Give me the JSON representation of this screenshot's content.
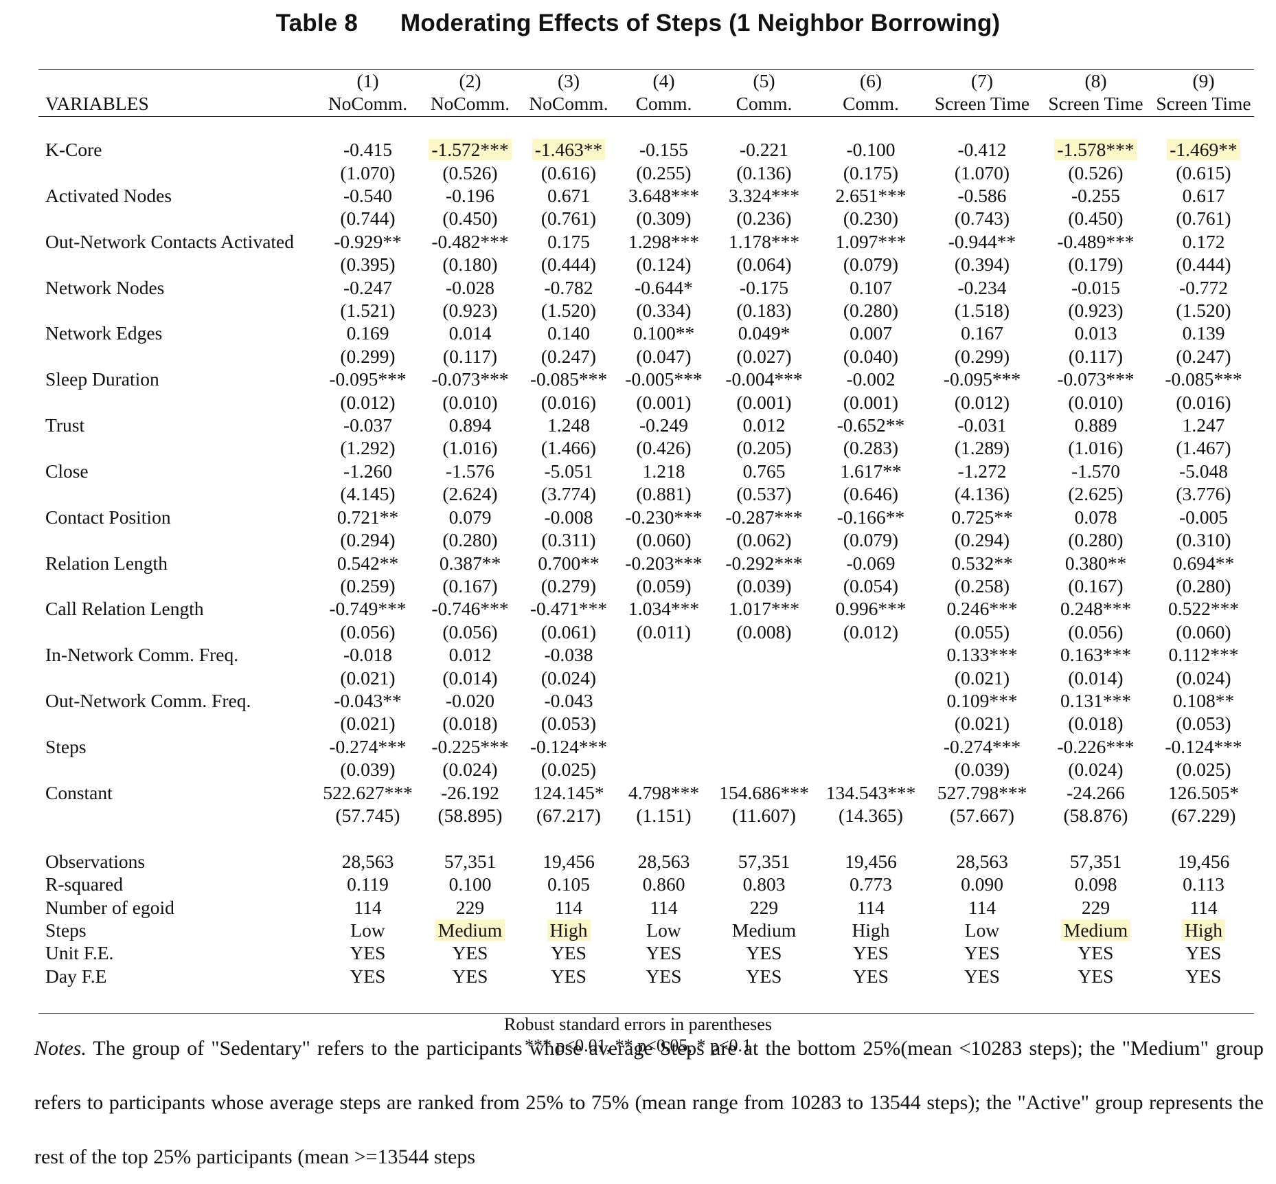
{
  "title": {
    "number": "Table 8",
    "text": "Moderating Effects of Steps (1 Neighbor Borrowing)"
  },
  "header": {
    "variables_label": "VARIABLES",
    "col_nums": [
      "(1)",
      "(2)",
      "(3)",
      "(4)",
      "(5)",
      "(6)",
      "(7)",
      "(8)",
      "(9)"
    ],
    "col_names": [
      "NoComm.",
      "NoComm.",
      "NoComm.",
      "Comm.",
      "Comm.",
      "Comm.",
      "Screen Time",
      "Screen Time",
      "Screen Time"
    ]
  },
  "rows": [
    {
      "label": "K-Core",
      "coef": [
        "-0.415",
        "-1.572***",
        "-1.463**",
        "-0.155",
        "-0.221",
        "-0.100",
        "-0.412",
        "-1.578***",
        "-1.469**"
      ],
      "se": [
        "(1.070)",
        "(0.526)",
        "(0.616)",
        "(0.255)",
        "(0.136)",
        "(0.175)",
        "(1.070)",
        "(0.526)",
        "(0.615)"
      ],
      "highlight": [
        1,
        2,
        7,
        8
      ]
    },
    {
      "label": "Activated Nodes",
      "coef": [
        "-0.540",
        "-0.196",
        "0.671",
        "3.648***",
        "3.324***",
        "2.651***",
        "-0.586",
        "-0.255",
        "0.617"
      ],
      "se": [
        "(0.744)",
        "(0.450)",
        "(0.761)",
        "(0.309)",
        "(0.236)",
        "(0.230)",
        "(0.743)",
        "(0.450)",
        "(0.761)"
      ]
    },
    {
      "label": "Out-Network Contacts Activated",
      "coef": [
        "-0.929**",
        "-0.482***",
        "0.175",
        "1.298***",
        "1.178***",
        "1.097***",
        "-0.944**",
        "-0.489***",
        "0.172"
      ],
      "se": [
        "(0.395)",
        "(0.180)",
        "(0.444)",
        "(0.124)",
        "(0.064)",
        "(0.079)",
        "(0.394)",
        "(0.179)",
        "(0.444)"
      ]
    },
    {
      "label": "Network Nodes",
      "coef": [
        "-0.247",
        "-0.028",
        "-0.782",
        "-0.644*",
        "-0.175",
        "0.107",
        "-0.234",
        "-0.015",
        "-0.772"
      ],
      "se": [
        "(1.521)",
        "(0.923)",
        "(1.520)",
        "(0.334)",
        "(0.183)",
        "(0.280)",
        "(1.518)",
        "(0.923)",
        "(1.520)"
      ]
    },
    {
      "label": "Network Edges",
      "coef": [
        "0.169",
        "0.014",
        "0.140",
        "0.100**",
        "0.049*",
        "0.007",
        "0.167",
        "0.013",
        "0.139"
      ],
      "se": [
        "(0.299)",
        "(0.117)",
        "(0.247)",
        "(0.047)",
        "(0.027)",
        "(0.040)",
        "(0.299)",
        "(0.117)",
        "(0.247)"
      ]
    },
    {
      "label": "Sleep Duration",
      "coef": [
        "-0.095***",
        "-0.073***",
        "-0.085***",
        "-0.005***",
        "-0.004***",
        "-0.002",
        "-0.095***",
        "-0.073***",
        "-0.085***"
      ],
      "se": [
        "(0.012)",
        "(0.010)",
        "(0.016)",
        "(0.001)",
        "(0.001)",
        "(0.001)",
        "(0.012)",
        "(0.010)",
        "(0.016)"
      ]
    },
    {
      "label": "Trust",
      "coef": [
        "-0.037",
        "0.894",
        "1.248",
        "-0.249",
        "0.012",
        "-0.652**",
        "-0.031",
        "0.889",
        "1.247"
      ],
      "se": [
        "(1.292)",
        "(1.016)",
        "(1.466)",
        "(0.426)",
        "(0.205)",
        "(0.283)",
        "(1.289)",
        "(1.016)",
        "(1.467)"
      ]
    },
    {
      "label": "Close",
      "coef": [
        "-1.260",
        "-1.576",
        "-5.051",
        "1.218",
        "0.765",
        "1.617**",
        "-1.272",
        "-1.570",
        "-5.048"
      ],
      "se": [
        "(4.145)",
        "(2.624)",
        "(3.774)",
        "(0.881)",
        "(0.537)",
        "(0.646)",
        "(4.136)",
        "(2.625)",
        "(3.776)"
      ]
    },
    {
      "label": "Contact Position",
      "coef": [
        "0.721**",
        "0.079",
        "-0.008",
        "-0.230***",
        "-0.287***",
        "-0.166**",
        "0.725**",
        "0.078",
        "-0.005"
      ],
      "se": [
        "(0.294)",
        "(0.280)",
        "(0.311)",
        "(0.060)",
        "(0.062)",
        "(0.079)",
        "(0.294)",
        "(0.280)",
        "(0.310)"
      ]
    },
    {
      "label": "Relation Length",
      "coef": [
        "0.542**",
        "0.387**",
        "0.700**",
        "-0.203***",
        "-0.292***",
        "-0.069",
        "0.532**",
        "0.380**",
        "0.694**"
      ],
      "se": [
        "(0.259)",
        "(0.167)",
        "(0.279)",
        "(0.059)",
        "(0.039)",
        "(0.054)",
        "(0.258)",
        "(0.167)",
        "(0.280)"
      ]
    },
    {
      "label": "Call Relation Length",
      "coef": [
        "-0.749***",
        "-0.746***",
        "-0.471***",
        "1.034***",
        "1.017***",
        "0.996***",
        "0.246***",
        "0.248***",
        "0.522***"
      ],
      "se": [
        "(0.056)",
        "(0.056)",
        "(0.061)",
        "(0.011)",
        "(0.008)",
        "(0.012)",
        "(0.055)",
        "(0.056)",
        "(0.060)"
      ]
    },
    {
      "label": "In-Network Comm. Freq.",
      "coef": [
        "-0.018",
        "0.012",
        "-0.038",
        "",
        "",
        "",
        "0.133***",
        "0.163***",
        "0.112***"
      ],
      "se": [
        "(0.021)",
        "(0.014)",
        "(0.024)",
        "",
        "",
        "",
        "(0.021)",
        "(0.014)",
        "(0.024)"
      ]
    },
    {
      "label": "Out-Network Comm. Freq.",
      "coef": [
        "-0.043**",
        "-0.020",
        "-0.043",
        "",
        "",
        "",
        "0.109***",
        "0.131***",
        "0.108**"
      ],
      "se": [
        "(0.021)",
        "(0.018)",
        "(0.053)",
        "",
        "",
        "",
        "(0.021)",
        "(0.018)",
        "(0.053)"
      ]
    },
    {
      "label": "Steps",
      "coef": [
        "-0.274***",
        "-0.225***",
        "-0.124***",
        "",
        "",
        "",
        "-0.274***",
        "-0.226***",
        "-0.124***"
      ],
      "se": [
        "(0.039)",
        "(0.024)",
        "(0.025)",
        "",
        "",
        "",
        "(0.039)",
        "(0.024)",
        "(0.025)"
      ]
    },
    {
      "label": "Constant",
      "coef": [
        "522.627***",
        "-26.192",
        "124.145*",
        "4.798***",
        "154.686***",
        "134.543***",
        "527.798***",
        "-24.266",
        "126.505*"
      ],
      "se": [
        "(57.745)",
        "(58.895)",
        "(67.217)",
        "(1.151)",
        "(11.607)",
        "(14.365)",
        "(57.667)",
        "(58.876)",
        "(67.229)"
      ]
    }
  ],
  "stats": [
    {
      "label": "Observations",
      "values": [
        "28,563",
        "57,351",
        "19,456",
        "28,563",
        "57,351",
        "19,456",
        "28,563",
        "57,351",
        "19,456"
      ]
    },
    {
      "label": "R-squared",
      "values": [
        "0.119",
        "0.100",
        "0.105",
        "0.860",
        "0.803",
        "0.773",
        "0.090",
        "0.098",
        "0.113"
      ]
    },
    {
      "label": "Number of egoid",
      "values": [
        "114",
        "229",
        "114",
        "114",
        "229",
        "114",
        "114",
        "229",
        "114"
      ]
    },
    {
      "label": "Steps",
      "values": [
        "Low",
        "Medium",
        "High",
        "Low",
        "Medium",
        "High",
        "Low",
        "Medium",
        "High"
      ],
      "highlight": [
        1,
        2,
        7,
        8
      ]
    },
    {
      "label": "Unit F.E.",
      "values": [
        "YES",
        "YES",
        "YES",
        "YES",
        "YES",
        "YES",
        "YES",
        "YES",
        "YES"
      ]
    },
    {
      "label": "Day F.E",
      "values": [
        "YES",
        "YES",
        "YES",
        "YES",
        "YES",
        "YES",
        "YES",
        "YES",
        "YES"
      ]
    }
  ],
  "footer": {
    "line1": "Robust standard errors in parentheses",
    "line2": "*** p<0.01, ** p<0.05, * p<0.1"
  },
  "notes": {
    "lead": "Notes.",
    "text": " The group of \"Sedentary\" refers to the participants whose average Steps are at the bottom 25%(mean <10283 steps); the \"Medium\" group refers to participants whose average steps are ranked from 25% to 75% (mean range from 10283 to 13544 steps); the \"Active\" group represents the rest of the top 25% participants (mean >=13544 steps"
  },
  "colors": {
    "highlight": "#fdf6c8",
    "rule": "#222222"
  }
}
